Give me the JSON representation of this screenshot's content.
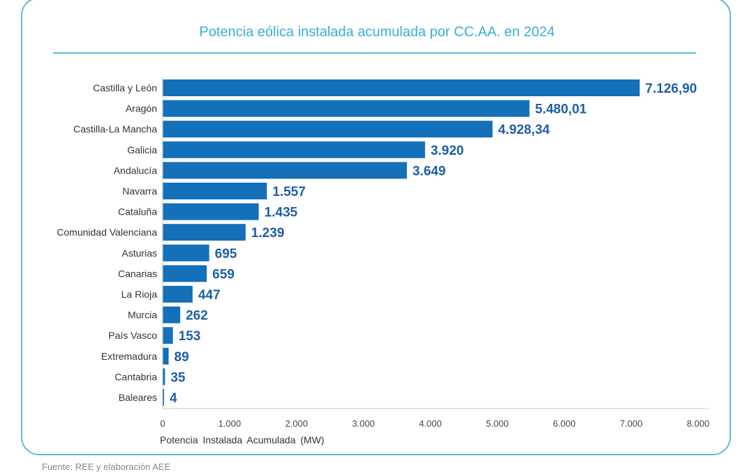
{
  "chart_data": {
    "type": "bar",
    "orientation": "horizontal",
    "title": "Potencia eólica instalada acumulada por CC.AA. en 2024",
    "xlabel": "Potencia Instalada Acumulada (MW)",
    "ylabel": "",
    "xlim": [
      0,
      8000
    ],
    "grid": false,
    "categories": [
      "Castilla y León",
      "Aragón",
      "Castilla-La Mancha",
      "Galicia",
      "Andalucía",
      "Navarra",
      "Cataluña",
      "Comunidad Valenciana",
      "Asturias",
      "Canarias",
      "La Rioja",
      "Murcia",
      "País Vasco",
      "Extremadura",
      "Cantabria",
      "Baleares"
    ],
    "values": [
      7126.9,
      5480.01,
      4928.34,
      3920,
      3649,
      1557,
      1435,
      1239,
      695,
      659,
      447,
      262,
      153,
      89,
      35,
      4
    ],
    "value_labels": [
      "7.126,90",
      "5.480,01",
      "4.928,34",
      "3.920",
      "3.649",
      "1.557",
      "1.435",
      "1.239",
      "695",
      "659",
      "447",
      "262",
      "153",
      "89",
      "35",
      "4"
    ],
    "ticks": [
      0,
      1000,
      2000,
      3000,
      4000,
      5000,
      6000,
      7000,
      8000
    ],
    "tick_labels": [
      "0",
      "1.000",
      "2.000",
      "3.000",
      "4.000",
      "5.000",
      "6.000",
      "7.000",
      "8.000"
    ],
    "bar_color": "#1470b8",
    "label_color": "#1f5fa8"
  },
  "footer": "Fuente: REE y elaboración AEE"
}
